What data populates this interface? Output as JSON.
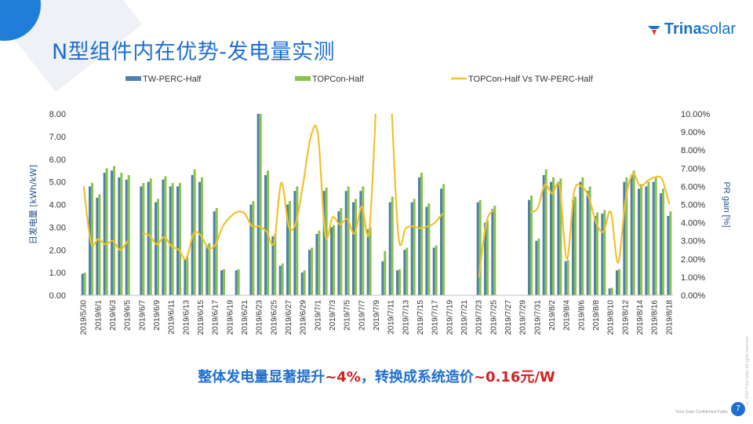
{
  "slide": {
    "title": "N型组件内在优势-发电量实测",
    "logo": {
      "bold": "Trina",
      "regular": "solar"
    },
    "summary_blue_1": "整体发电量显著提升",
    "summary_red_1": "~4%",
    "summary_blue_2": "，转换成系统造价",
    "summary_red_2": "~0.16元/W",
    "footer": "Trina Solar Confidential  Public",
    "page_number": "7",
    "side_copyright": "© 2019 Trina Solar. All rights reserved.",
    "colors": {
      "accent": "#1f6fd0",
      "highlight": "#d42020"
    }
  },
  "chart_data": {
    "type": "bar",
    "title": "",
    "legend_position": "top",
    "ylabel": "日发电量 [kWh/kW]",
    "ylabel_right": "PR gain [%]",
    "ylim": [
      0,
      8
    ],
    "ylim_right": [
      0,
      10
    ],
    "yticks": [
      "0.00",
      "1.00",
      "2.00",
      "3.00",
      "4.00",
      "5.00",
      "6.00",
      "7.00",
      "8.00"
    ],
    "yticks_right": [
      "0.00%",
      "1.00%",
      "2.00%",
      "3.00%",
      "4.00%",
      "5.00%",
      "6.00%",
      "7.00%",
      "8.00%",
      "9.00%",
      "10.00%"
    ],
    "categories": [
      "2019/5/30",
      "2019/5/31",
      "2019/6/1",
      "2019/6/2",
      "2019/6/3",
      "2019/6/4",
      "2019/6/5",
      "2019/6/6",
      "2019/6/7",
      "2019/6/8",
      "2019/6/9",
      "2019/6/10",
      "2019/6/11",
      "2019/6/12",
      "2019/6/13",
      "2019/6/14",
      "2019/6/15",
      "2019/6/16",
      "2019/6/17",
      "2019/6/18",
      "2019/6/19",
      "2019/6/20",
      "2019/6/21",
      "2019/6/22",
      "2019/6/23",
      "2019/6/24",
      "2019/6/25",
      "2019/6/26",
      "2019/6/27",
      "2019/6/28",
      "2019/6/29",
      "2019/6/30",
      "2019/7/1",
      "2019/7/2",
      "2019/7/3",
      "2019/7/4",
      "2019/7/5",
      "2019/7/6",
      "2019/7/7",
      "2019/7/8",
      "2019/7/9",
      "2019/7/10",
      "2019/7/11",
      "2019/7/12",
      "2019/7/13",
      "2019/7/14",
      "2019/7/15",
      "2019/7/16",
      "2019/7/17",
      "2019/7/18",
      "2019/7/19",
      "2019/7/20",
      "2019/7/21",
      "2019/7/22",
      "2019/7/23",
      "2019/7/24",
      "2019/7/25",
      "2019/7/26",
      "2019/7/27",
      "2019/7/28",
      "2019/7/29",
      "2019/7/30",
      "2019/7/31",
      "2019/8/1",
      "2019/8/2",
      "2019/8/3",
      "2019/8/4",
      "2019/8/5",
      "2019/8/6",
      "2019/8/7",
      "2019/8/8",
      "2019/8/9",
      "2019/8/10",
      "2019/8/11",
      "2019/8/12",
      "2019/8/13",
      "2019/8/14",
      "2019/8/15",
      "2019/8/16",
      "2019/8/17",
      "2019/8/18"
    ],
    "xtick_labels": [
      "2019/5/30",
      "2019/6/1",
      "2019/6/3",
      "2019/6/5",
      "2019/6/7",
      "2019/6/9",
      "2019/6/11",
      "2019/6/13",
      "2019/6/15",
      "2019/6/17",
      "2019/6/19",
      "2019/6/21",
      "2019/6/23",
      "2019/6/25",
      "2019/6/27",
      "2019/6/29",
      "2019/7/1",
      "2019/7/3",
      "2019/7/5",
      "2019/7/7",
      "2019/7/9",
      "2019/7/11",
      "2019/7/13",
      "2019/7/15",
      "2019/7/17",
      "2019/7/19",
      "2019/7/21",
      "2019/7/23",
      "2019/7/25",
      "2019/7/27",
      "2019/7/29",
      "2019/7/31",
      "2019/8/2",
      "2019/8/4",
      "2019/8/6",
      "2019/8/8",
      "2019/8/10",
      "2019/8/12",
      "2019/8/14",
      "2019/8/16",
      "2019/8/18"
    ],
    "series": [
      {
        "name": "TW-PERC-Half",
        "type": "bar",
        "axis": "left",
        "color": "#4e7fae",
        "values": [
          0.95,
          4.8,
          4.3,
          5.4,
          5.5,
          5.2,
          5.1,
          null,
          4.8,
          5.0,
          4.1,
          5.1,
          4.8,
          4.8,
          1.6,
          5.3,
          5.0,
          2.2,
          3.7,
          1.1,
          null,
          1.1,
          null,
          4.0,
          8.0,
          5.3,
          2.6,
          1.3,
          4.0,
          4.6,
          1.0,
          2.0,
          2.7,
          4.6,
          3.0,
          3.7,
          4.6,
          4.1,
          4.6,
          2.9,
          null,
          1.5,
          4.1,
          1.1,
          2.0,
          4.1,
          5.2,
          3.9,
          2.1,
          4.7,
          null,
          null,
          null,
          null,
          4.1,
          3.2,
          3.8,
          null,
          null,
          null,
          null,
          4.2,
          2.4,
          5.3,
          5.0,
          5.0,
          1.5,
          4.2,
          5.0,
          4.6,
          3.5,
          3.6,
          0.3,
          1.1,
          5.0,
          5.3,
          4.7,
          4.8,
          5.0,
          4.5,
          3.5
        ]
      },
      {
        "name": "TOPCon-Half",
        "type": "bar",
        "axis": "left",
        "color": "#8bc34a",
        "values": [
          1.0,
          4.95,
          4.45,
          5.6,
          5.7,
          5.4,
          5.3,
          null,
          4.95,
          5.15,
          4.25,
          5.25,
          4.95,
          4.95,
          1.7,
          5.55,
          5.2,
          2.3,
          3.85,
          1.15,
          null,
          1.15,
          null,
          4.15,
          8.3,
          5.5,
          2.7,
          1.4,
          4.15,
          4.8,
          1.1,
          2.1,
          2.85,
          4.75,
          3.1,
          3.85,
          4.8,
          4.25,
          4.8,
          3.0,
          null,
          1.95,
          4.35,
          1.15,
          2.1,
          4.25,
          5.4,
          4.05,
          2.2,
          4.9,
          null,
          null,
          null,
          null,
          4.2,
          3.3,
          3.95,
          null,
          null,
          null,
          null,
          4.4,
          2.5,
          5.55,
          5.2,
          5.15,
          1.55,
          4.35,
          5.2,
          4.8,
          3.65,
          3.75,
          0.33,
          1.15,
          5.2,
          5.5,
          4.9,
          5.0,
          5.2,
          4.7,
          3.7
        ]
      },
      {
        "name": "TOPCon-Half Vs TW-PERC-Half",
        "type": "line",
        "axis": "right",
        "color": "#f2c12e",
        "values": [
          6.0,
          2.9,
          3.1,
          2.8,
          3.0,
          2.5,
          3.0,
          null,
          3.4,
          3.3,
          2.8,
          3.2,
          2.7,
          2.5,
          2.0,
          3.4,
          3.3,
          2.6,
          2.8,
          3.8,
          4.3,
          4.6,
          4.5,
          3.8,
          3.8,
          3.5,
          2.9,
          6.2,
          3.8,
          4.0,
          6.2,
          8.7,
          8.9,
          3.3,
          4.3,
          3.9,
          4.2,
          3.4,
          4.9,
          3.5,
          11,
          null,
          11,
          3.2,
          3.7,
          3.8,
          3.7,
          3.8,
          4.0,
          4.5,
          null,
          null,
          null,
          null,
          1.0,
          4.0,
          4.7,
          null,
          null,
          null,
          null,
          4.6,
          4.8,
          6.1,
          5.6,
          6.0,
          2.0,
          5.7,
          6.0,
          5.4,
          4.0,
          3.5,
          4.6,
          1.8,
          5.2,
          6.7,
          6.0,
          6.3,
          6.5,
          6.4,
          5.0
        ]
      }
    ]
  }
}
